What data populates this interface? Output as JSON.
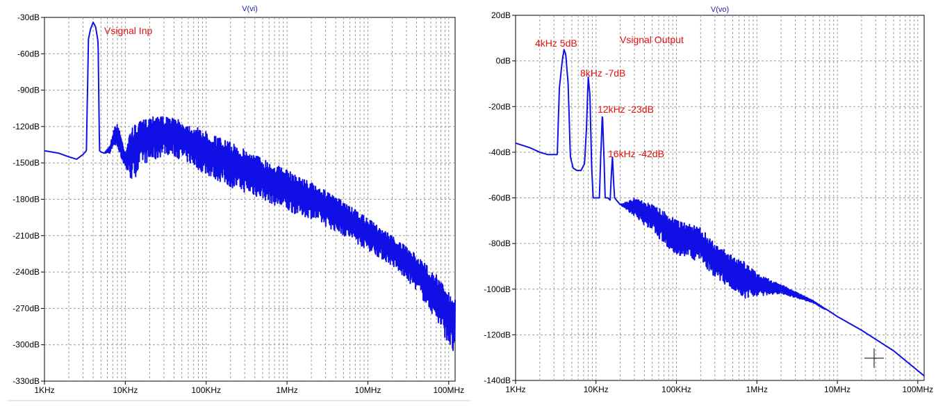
{
  "chart_data": [
    {
      "type": "line",
      "title": "V(vi)",
      "xscale": "log",
      "xlim_hz": [
        1000,
        120000000
      ],
      "xticks": [
        "1KHz",
        "10KHz",
        "100KHz",
        "1MHz",
        "10MHz",
        "100MHz"
      ],
      "ylim": [
        -330,
        -30
      ],
      "yticks": [
        "-30dB",
        "-60dB",
        "-90dB",
        "-120dB",
        "-150dB",
        "-180dB",
        "-210dB",
        "-240dB",
        "-270dB",
        "-300dB",
        "-330dB"
      ],
      "grid": true,
      "color": "#1010e6",
      "annotations": [
        {
          "text": "Vsignal Inp"
        }
      ],
      "series": [
        {
          "x_hz": [
            1000,
            1500,
            2000,
            2500,
            3000,
            3300,
            3500,
            3700,
            4000,
            4300,
            4600,
            4800,
            5000,
            5500,
            6500,
            7300,
            8000,
            8500,
            9000,
            10000,
            12000,
            14000,
            16000,
            20000,
            25000,
            30000,
            40000,
            60000,
            100000,
            200000,
            500000,
            1000000,
            2000000,
            5000000,
            10000000,
            20000000,
            40000000,
            70000000,
            100000000,
            120000000
          ],
          "upper_db": [
            -140,
            -142,
            -145,
            -147,
            -143,
            -140,
            -48,
            -40,
            -34,
            -38,
            -50,
            -140,
            -141,
            -142,
            -135,
            -120,
            -118,
            -122,
            -130,
            -140,
            -120,
            -118,
            -115,
            -112,
            -108,
            -112,
            -113,
            -118,
            -124,
            -133,
            -146,
            -156,
            -166,
            -182,
            -196,
            -210,
            -226,
            -242,
            -256,
            -262
          ],
          "lower_db": [
            -140,
            -142,
            -145,
            -147,
            -143,
            -140,
            -48,
            -40,
            -34,
            -38,
            -50,
            -140,
            -141,
            -142,
            -142,
            -136,
            -138,
            -142,
            -148,
            -155,
            -165,
            -160,
            -150,
            -150,
            -148,
            -142,
            -145,
            -150,
            -160,
            -170,
            -180,
            -190,
            -196,
            -210,
            -222,
            -235,
            -255,
            -280,
            -300,
            -312
          ]
        }
      ]
    },
    {
      "type": "line",
      "title": "V(vo)",
      "xscale": "log",
      "xlim_hz": [
        1000,
        120000000
      ],
      "xticks": [
        "1KHz",
        "10KHz",
        "100KHz",
        "1MHz",
        "10MHz",
        "100MHz"
      ],
      "ylim": [
        -140,
        20
      ],
      "yticks": [
        "20dB",
        "0dB",
        "-20dB",
        "-40dB",
        "-60dB",
        "-80dB",
        "-100dB",
        "-120dB",
        "-140dB"
      ],
      "grid": true,
      "color": "#1010e6",
      "annotations": [
        {
          "text": "4kHz 5dB"
        },
        {
          "text": "Vsignal Output"
        },
        {
          "text": "8kHz -7dB"
        },
        {
          "text": "12kHz -23dB"
        },
        {
          "text": "16kHz -42dB"
        }
      ],
      "series": [
        {
          "x_hz": [
            1000,
            1500,
            2000,
            2500,
            3000,
            3300,
            3500,
            3800,
            4000,
            4200,
            4500,
            4800,
            5200,
            5800,
            6500,
            7200,
            7600,
            8000,
            8400,
            8800,
            9200,
            10000,
            11000,
            11500,
            12000,
            12500,
            13000,
            14000,
            15000,
            15500,
            16000,
            16500,
            17000,
            20000,
            30000,
            50000,
            80000,
            100000,
            200000,
            300000,
            500000,
            700000,
            1000000,
            2000000,
            5000000,
            10000000,
            20000000,
            50000000,
            120000000
          ],
          "upper_db": [
            -36,
            -38,
            -40,
            -41,
            -41,
            -41,
            -12,
            0,
            5,
            3,
            -10,
            -42,
            -47,
            -48,
            -48,
            -45,
            -30,
            -7,
            -15,
            -45,
            -60,
            -60,
            -60,
            -40,
            -23,
            -40,
            -60,
            -60,
            -61,
            -50,
            -42,
            -52,
            -60,
            -63,
            -60,
            -63,
            -67,
            -70,
            -73,
            -80,
            -85,
            -88,
            -93,
            -98,
            -105,
            -112,
            -118,
            -127,
            -138
          ],
          "lower_db": [
            -36,
            -38,
            -40,
            -41,
            -41,
            -41,
            -12,
            0,
            5,
            3,
            -10,
            -42,
            -47,
            -48,
            -48,
            -45,
            -30,
            -7,
            -15,
            -45,
            -60,
            -60,
            -60,
            -40,
            -23,
            -40,
            -60,
            -60,
            -61,
            -50,
            -42,
            -52,
            -60,
            -63,
            -68,
            -75,
            -82,
            -85,
            -88,
            -95,
            -100,
            -104,
            -103,
            -102,
            -106,
            -112,
            -118,
            -127,
            -138
          ]
        }
      ]
    }
  ]
}
